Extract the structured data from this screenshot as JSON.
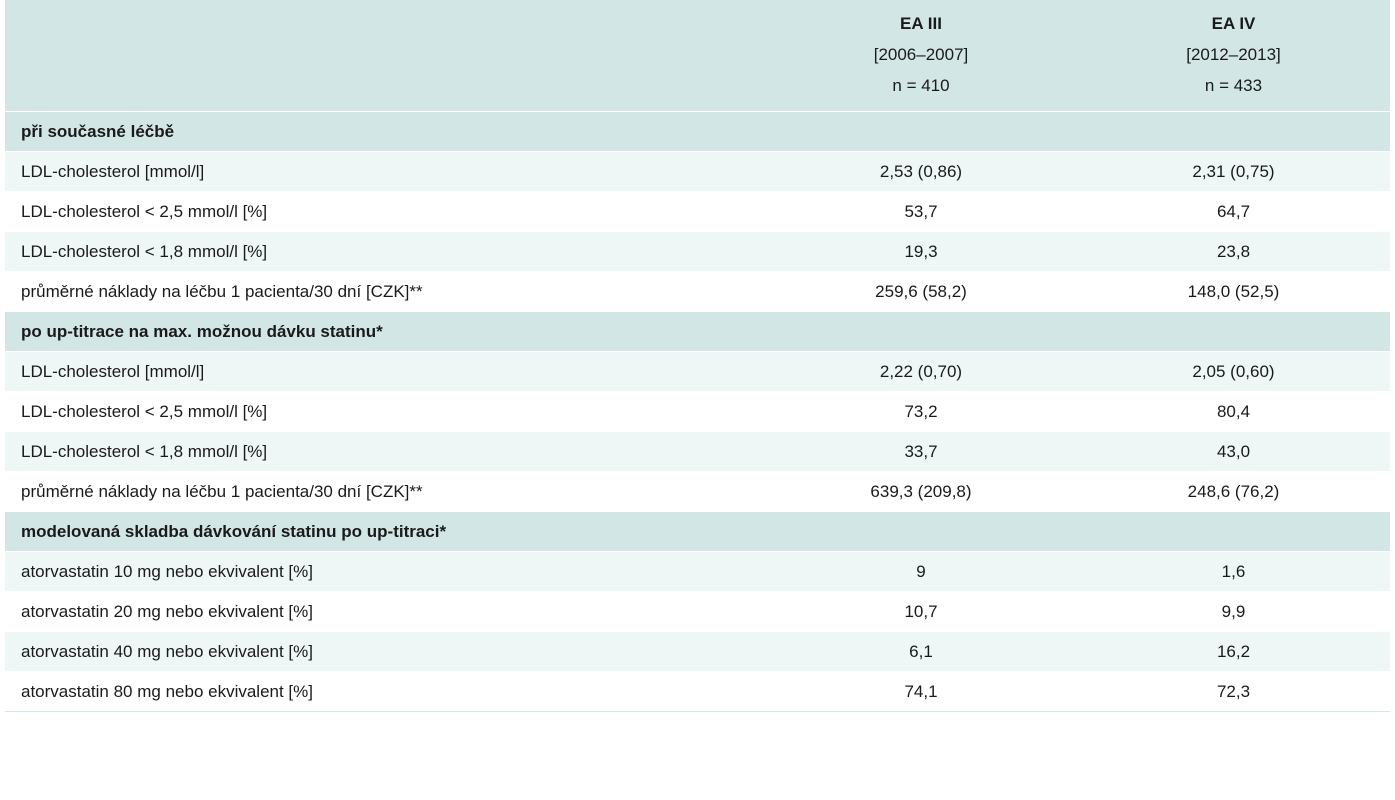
{
  "header": {
    "col1": {
      "title": "EA III",
      "period": "[2006–2007]",
      "n": "n = 410"
    },
    "col2": {
      "title": "EA IV",
      "period": "[2012–2013]",
      "n": "n = 433"
    }
  },
  "sections": [
    {
      "title": "při současné léčbě",
      "rows": [
        {
          "label": "LDL-cholesterol [mmol/l]",
          "ea3": "2,53 (0,86)",
          "ea4": "2,31 (0,75)"
        },
        {
          "label": "LDL-cholesterol < 2,5 mmol/l [%]",
          "ea3": "53,7",
          "ea4": "64,7"
        },
        {
          "label": "LDL-cholesterol < 1,8 mmol/l [%]",
          "ea3": "19,3",
          "ea4": "23,8"
        },
        {
          "label": "průměrné náklady na léčbu 1 pacienta/30 dní [CZK]**",
          "ea3": "259,6 (58,2)",
          "ea4": "148,0 (52,5)"
        }
      ]
    },
    {
      "title": "po up-titrace na max. možnou dávku statinu*",
      "rows": [
        {
          "label": "LDL-cholesterol [mmol/l]",
          "ea3": "2,22 (0,70)",
          "ea4": "2,05 (0,60)"
        },
        {
          "label": "LDL-cholesterol < 2,5 mmol/l [%]",
          "ea3": "73,2",
          "ea4": "80,4"
        },
        {
          "label": "LDL-cholesterol < 1,8 mmol/l [%]",
          "ea3": "33,7",
          "ea4": "43,0"
        },
        {
          "label": "průměrné náklady na léčbu 1 pacienta/30 dní [CZK]**",
          "ea3": "639,3 (209,8)",
          "ea4": "248,6 (76,2)"
        }
      ]
    },
    {
      "title": "modelovaná skladba dávkování statinu po up-titraci*",
      "rows": [
        {
          "label": "atorvastatin 10 mg nebo ekvivalent [%]",
          "ea3": "9",
          "ea4": "1,6"
        },
        {
          "label": "atorvastatin 20 mg nebo ekvivalent [%]",
          "ea3": "10,7",
          "ea4": "9,9"
        },
        {
          "label": "atorvastatin 40 mg nebo ekvivalent [%]",
          "ea3": "6,1",
          "ea4": "16,2"
        },
        {
          "label": "atorvastatin 80 mg nebo ekvivalent [%]",
          "ea3": "74,1",
          "ea4": "72,3"
        }
      ]
    }
  ]
}
